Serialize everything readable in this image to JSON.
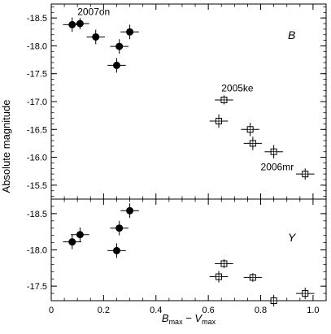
{
  "chart_data": [
    {
      "type": "scatter",
      "panel_label": "B",
      "ylabel": "Absolute magnitude",
      "xlim": [
        0,
        1.05
      ],
      "ylim": [
        -18.75,
        -15.25
      ],
      "y_inverted": true,
      "yticks": [
        -18.5,
        -18.0,
        -17.5,
        -17.0,
        -16.5,
        -16.0,
        -15.5
      ],
      "ytick_labels": [
        "-18.5",
        "-18.0",
        "-17.5",
        "-17.0",
        "-16.5",
        "-16.0",
        "-15.5"
      ],
      "series": [
        {
          "marker": "filled-circle",
          "points": [
            {
              "x": 0.08,
              "y": -18.38,
              "xerr": 0.035,
              "yerr": 0.13
            },
            {
              "x": 0.11,
              "y": -18.4,
              "xerr": 0.035,
              "yerr": 0.1
            },
            {
              "x": 0.17,
              "y": -18.16,
              "xerr": 0.035,
              "yerr": 0.13
            },
            {
              "x": 0.26,
              "y": -17.99,
              "xerr": 0.035,
              "yerr": 0.13
            },
            {
              "x": 0.3,
              "y": -18.25,
              "xerr": 0.035,
              "yerr": 0.13
            },
            {
              "x": 0.25,
              "y": -17.65,
              "xerr": 0.035,
              "yerr": 0.13
            }
          ]
        },
        {
          "marker": "open-square",
          "points": [
            {
              "x": 0.66,
              "y": -17.03,
              "xerr": 0.035,
              "yerr": 0.08
            },
            {
              "x": 0.64,
              "y": -16.65,
              "xerr": 0.035,
              "yerr": 0.12
            },
            {
              "x": 0.76,
              "y": -16.5,
              "xerr": 0.035,
              "yerr": 0.12
            },
            {
              "x": 0.77,
              "y": -16.25,
              "xerr": 0.035,
              "yerr": 0.12
            },
            {
              "x": 0.85,
              "y": -16.1,
              "xerr": 0.035,
              "yerr": 0.12
            },
            {
              "x": 0.97,
              "y": -15.7,
              "xerr": 0.035,
              "yerr": 0.1
            }
          ]
        }
      ],
      "annotations": [
        {
          "text": "2007on",
          "x": 0.1,
          "y": -18.55
        },
        {
          "text": "2005ke",
          "x": 0.65,
          "y": -17.18
        },
        {
          "text": "2006mr",
          "x": 0.8,
          "y": -15.77
        }
      ]
    },
    {
      "type": "scatter",
      "panel_label": "Y",
      "xlabel": "B_max − V_max",
      "xlabel_parts": {
        "b": "B",
        "b_sub": "max",
        "minus": " − ",
        "v": "V",
        "v_sub": "max"
      },
      "xlim": [
        0,
        1.05
      ],
      "xticks": [
        0,
        0.2,
        0.4,
        0.6,
        0.8,
        1.0
      ],
      "xtick_labels": [
        "0",
        "0.2",
        "0.4",
        "0.6",
        "0.8",
        "1.0"
      ],
      "ylim": [
        -18.7,
        -17.3
      ],
      "y_inverted": true,
      "yticks": [
        -18.5,
        -18.0,
        -17.5
      ],
      "ytick_labels": [
        "-18.5",
        "-18.0",
        "-17.5"
      ],
      "series": [
        {
          "marker": "filled-circle",
          "points": [
            {
              "x": 0.08,
              "y": -18.11,
              "xerr": 0.035,
              "yerr": 0.1
            },
            {
              "x": 0.11,
              "y": -18.21,
              "xerr": 0.035,
              "yerr": 0.1
            },
            {
              "x": 0.26,
              "y": -18.3,
              "xerr": 0.035,
              "yerr": 0.1
            },
            {
              "x": 0.3,
              "y": -18.54,
              "xerr": 0.035,
              "yerr": 0.1
            },
            {
              "x": 0.25,
              "y": -17.99,
              "xerr": 0.035,
              "yerr": 0.1
            }
          ]
        },
        {
          "marker": "open-square",
          "points": [
            {
              "x": 0.66,
              "y": -17.81,
              "xerr": 0.035,
              "yerr": 0.06
            },
            {
              "x": 0.64,
              "y": -17.63,
              "xerr": 0.035,
              "yerr": 0.08
            },
            {
              "x": 0.77,
              "y": -17.62,
              "xerr": 0.035,
              "yerr": 0.06
            },
            {
              "x": 0.85,
              "y": -17.3,
              "xerr": 0.035,
              "yerr": 0.08
            },
            {
              "x": 0.97,
              "y": -17.4,
              "xerr": 0.035,
              "yerr": 0.08
            }
          ]
        }
      ]
    }
  ]
}
